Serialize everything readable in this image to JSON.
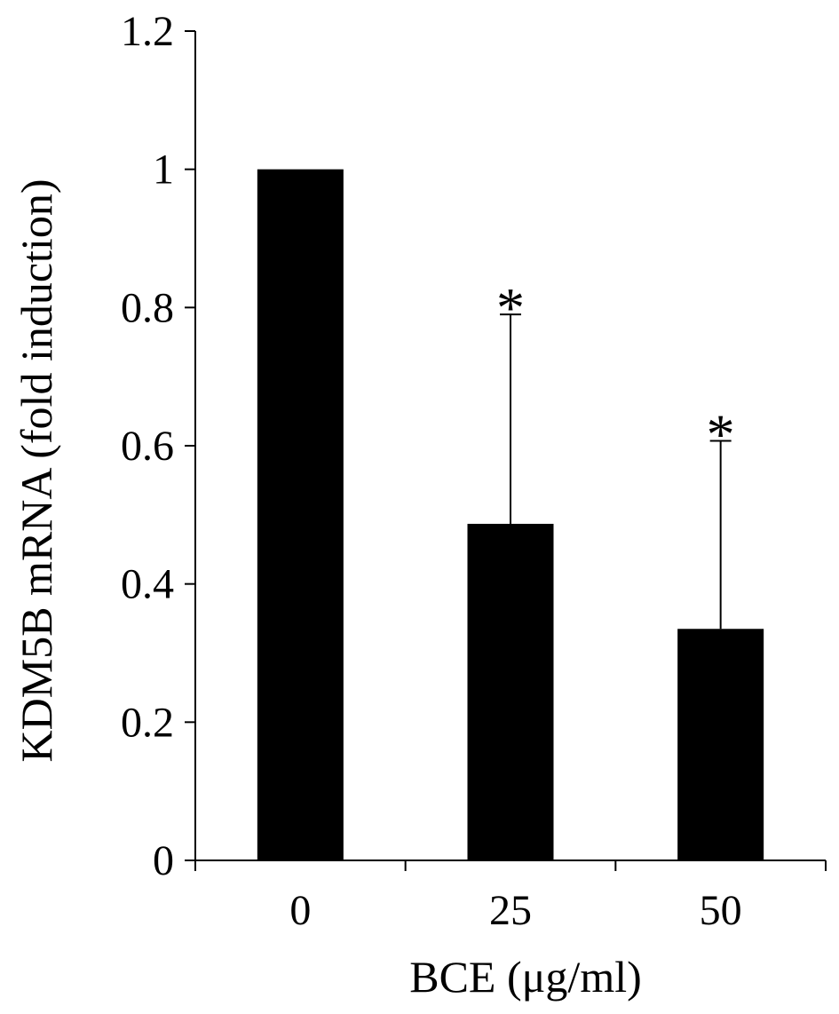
{
  "chart_data": {
    "type": "bar",
    "categories": [
      "0",
      "25",
      "50"
    ],
    "values": [
      1.0,
      0.487,
      0.335
    ],
    "error_upper": [
      null,
      0.79,
      0.607
    ],
    "significance": [
      "",
      "*",
      "*"
    ],
    "xlabel": "BCE (μg/ml)",
    "ylabel": "KDM5B mRNA  (fold induction)",
    "ylim": [
      0,
      1.2
    ],
    "yticks": [
      "0",
      "0.2",
      "0.4",
      "0.6",
      "0.8",
      "1",
      "1.2"
    ],
    "grid": false,
    "legend": "none",
    "bar_color": "#000000"
  }
}
